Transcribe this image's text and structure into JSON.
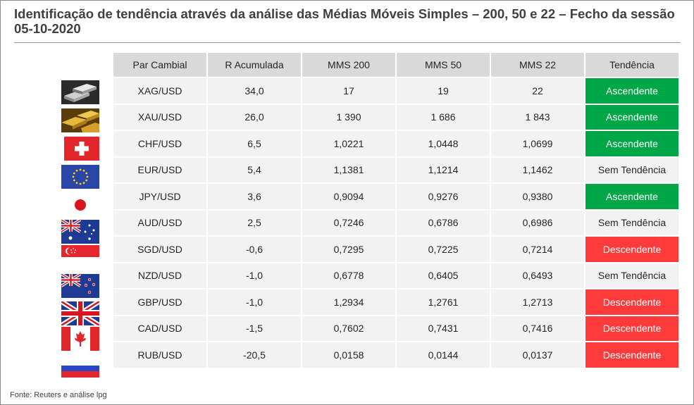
{
  "title": "Identificação de tendência através da análise das Médias Móveis Simples – 200, 50 e 22 – Fecho da sessão 05-10-2020",
  "source": "Fonte: Reuters e análise lpg",
  "colors": {
    "Ascendente": "#00a747",
    "Descendente": "#ff3a3a",
    "Sem Tendência": "#f2f2f2",
    "header_bg": "#d9d9d9",
    "cell_bg": "#f2f2f2"
  },
  "table": {
    "headers": [
      "Par Cambial",
      "R Acumulada",
      "MMS 200",
      "MMS 50",
      "MMS 22",
      "Tendência"
    ],
    "rows": [
      {
        "flag": "silver-bars-icon",
        "pair": "XAG/USD",
        "r_acum": "34,0",
        "mms200": "17",
        "mms50": "19",
        "mms22": "22",
        "trend": "Ascendente"
      },
      {
        "flag": "gold-bars-icon",
        "pair": "XAU/USD",
        "r_acum": "26,0",
        "mms200": "1 390",
        "mms50": "1 686",
        "mms22": "1 843",
        "trend": "Ascendente"
      },
      {
        "flag": "swiss-flag-icon",
        "pair": "CHF/USD",
        "r_acum": "6,5",
        "mms200": "1,0221",
        "mms50": "1,0448",
        "mms22": "1,0699",
        "trend": "Ascendente"
      },
      {
        "flag": "eu-flag-icon",
        "pair": "EUR/USD",
        "r_acum": "5,4",
        "mms200": "1,1381",
        "mms50": "1,1214",
        "mms22": "1,1462",
        "trend": "Sem Tendência"
      },
      {
        "flag": "japan-flag-icon",
        "pair": "JPY/USD",
        "r_acum": "3,6",
        "mms200": "0,9094",
        "mms50": "0,9276",
        "mms22": "0,9380",
        "trend": "Ascendente"
      },
      {
        "flag": "australia-flag-icon",
        "pair": "AUD/USD",
        "r_acum": "2,5",
        "mms200": "0,7246",
        "mms50": "0,6786",
        "mms22": "0,6986",
        "trend": "Sem Tendência"
      },
      {
        "flag": "singapore-flag-icon",
        "pair": "SGD/USD",
        "r_acum": "-0,6",
        "mms200": "0,7295",
        "mms50": "0,7225",
        "mms22": "0,7214",
        "trend": "Descendente"
      },
      {
        "flag": "new-zealand-flag-icon",
        "pair": "NZD/USD",
        "r_acum": "-1,0",
        "mms200": "0,6778",
        "mms50": "0,6405",
        "mms22": "0,6493",
        "trend": "Sem Tendência"
      },
      {
        "flag": "uk-flag-icon",
        "pair": "GBP/USD",
        "r_acum": "-1,0",
        "mms200": "1,2934",
        "mms50": "1,2761",
        "mms22": "1,2713",
        "trend": "Descendente"
      },
      {
        "flag": "canada-flag-icon",
        "pair": "CAD/USD",
        "r_acum": "-1,5",
        "mms200": "0,7602",
        "mms50": "0,7431",
        "mms22": "0,7416",
        "trend": "Descendente"
      },
      {
        "flag": "russia-flag-icon",
        "pair": "RUB/USD",
        "r_acum": "-20,5",
        "mms200": "0,0158",
        "mms50": "0,0144",
        "mms22": "0,0137",
        "trend": "Descendente"
      }
    ]
  }
}
